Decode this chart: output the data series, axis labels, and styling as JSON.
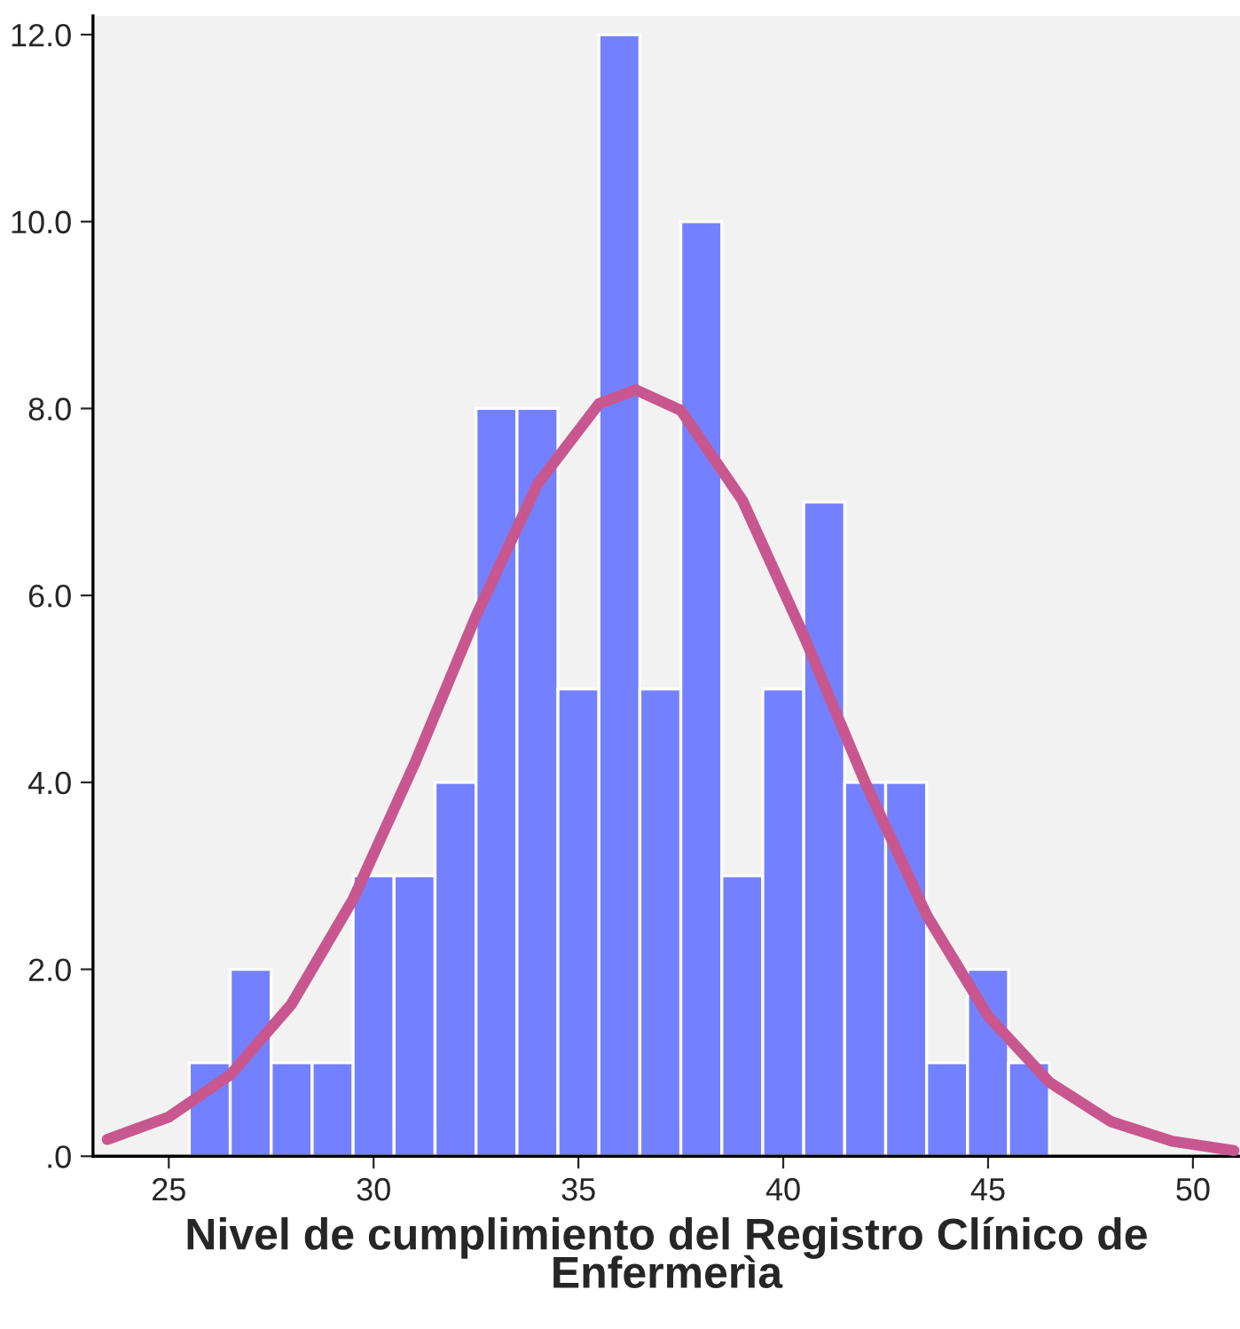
{
  "chart_data": {
    "type": "histogram",
    "xlabel": "Nivel de cumplimiento del Registro Clínico de Enfermerìa",
    "bins": [
      25.5,
      26.5,
      27.5,
      28.5,
      29.5,
      30.5,
      31.5,
      32.5,
      33.5,
      34.5,
      35.5,
      36.5,
      37.5,
      38.5,
      39.5,
      40.5,
      41.5,
      42.5,
      43.5,
      44.5,
      45.5,
      46.5
    ],
    "values": [
      1,
      2,
      1,
      1,
      3,
      3,
      4,
      8,
      8,
      5,
      12,
      5,
      10,
      3,
      5,
      7,
      4,
      4,
      1,
      2,
      1
    ],
    "color": "#7380ff",
    "series": [
      {
        "type": "line",
        "color": "#c8578f",
        "x": [
          23.5,
          25,
          26.5,
          28,
          29.5,
          31,
          32.5,
          34,
          35.5,
          36.4,
          37.5,
          39,
          40.5,
          42,
          43.5,
          45,
          46.5,
          48,
          49.5,
          51
        ],
        "values": [
          0.18,
          0.42,
          0.87,
          1.63,
          2.75,
          4.2,
          5.78,
          7.19,
          8.05,
          8.2,
          7.98,
          7.02,
          5.57,
          4.0,
          2.58,
          1.5,
          0.79,
          0.37,
          0.16,
          0.06
        ]
      }
    ],
    "xlim": [
      23.15,
      51.15
    ],
    "xticks": [
      25,
      30,
      35,
      40,
      45,
      50
    ],
    "ylim": [
      0,
      12.2
    ],
    "yticks": [
      {
        "value": 0,
        "label": ".0"
      },
      {
        "value": 2,
        "label": "2.0"
      },
      {
        "value": 4,
        "label": "4.0"
      },
      {
        "value": 6,
        "label": "6.0"
      },
      {
        "value": 8,
        "label": "8.0"
      },
      {
        "value": 10,
        "label": "10.0"
      },
      {
        "value": 12,
        "label": "12.0"
      }
    ],
    "grid": false
  }
}
